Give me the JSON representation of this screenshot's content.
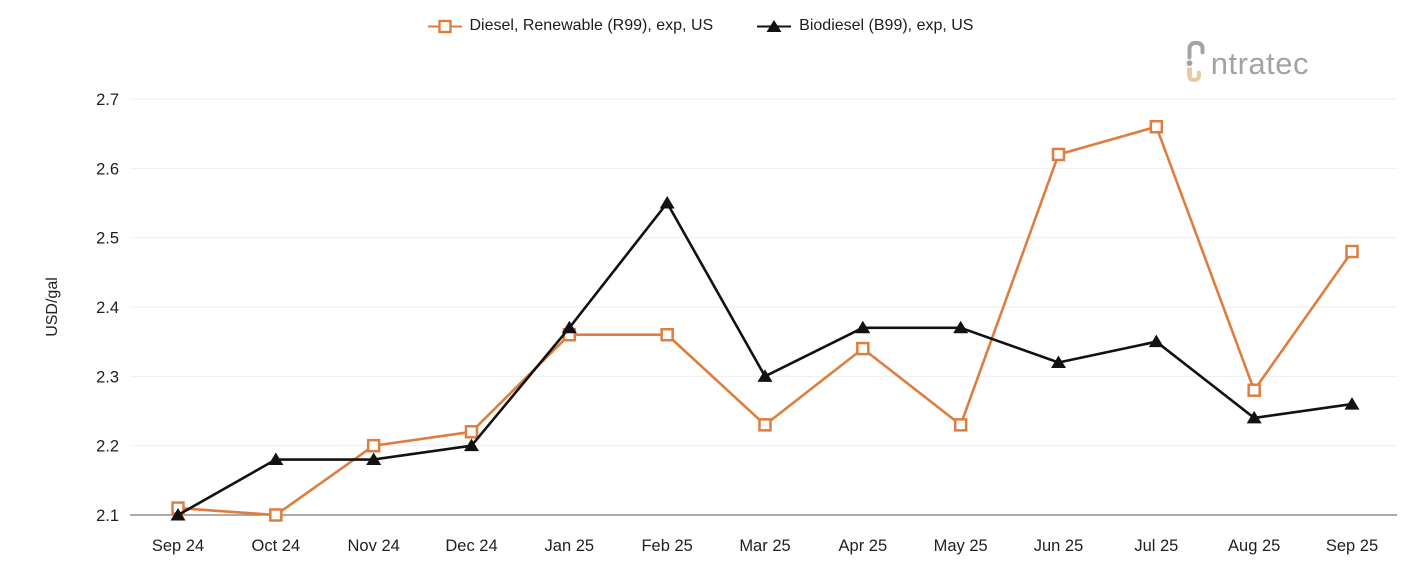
{
  "logo": {
    "text": "ntratec"
  },
  "chart_data": {
    "type": "line",
    "title": "",
    "xlabel": "",
    "ylabel": "USD/gal",
    "categories": [
      "Sep 24",
      "Oct 24",
      "Nov 24",
      "Dec 24",
      "Jan 25",
      "Feb 25",
      "Mar 25",
      "Apr 25",
      "May 25",
      "Jun 25",
      "Jul 25",
      "Aug 25",
      "Sep 25"
    ],
    "series": [
      {
        "name": "Diesel, Renewable (R99), exp, US",
        "color": "#DE7E3E",
        "marker": "square-open",
        "values": [
          2.11,
          2.1,
          2.2,
          2.22,
          2.36,
          2.36,
          2.23,
          2.34,
          2.23,
          2.62,
          2.66,
          2.28,
          2.48
        ]
      },
      {
        "name": "Biodiesel (B99), exp, US",
        "color": "#121212",
        "marker": "triangle-filled",
        "values": [
          2.1,
          2.18,
          2.18,
          2.2,
          2.37,
          2.55,
          2.3,
          2.37,
          2.37,
          2.32,
          2.35,
          2.24,
          2.26
        ]
      }
    ],
    "ylim": [
      2.1,
      2.7
    ],
    "yticks": [
      2.1,
      2.2,
      2.3,
      2.4,
      2.5,
      2.6,
      2.7
    ],
    "grid": true,
    "legend_position": "top"
  },
  "colors": {
    "grid": "#EEEEEE",
    "axis_line": "#8F8F8F",
    "tick_text": "#212121",
    "logo_gray": "#A3A3A3",
    "logo_tan": "#EBC8A0"
  }
}
